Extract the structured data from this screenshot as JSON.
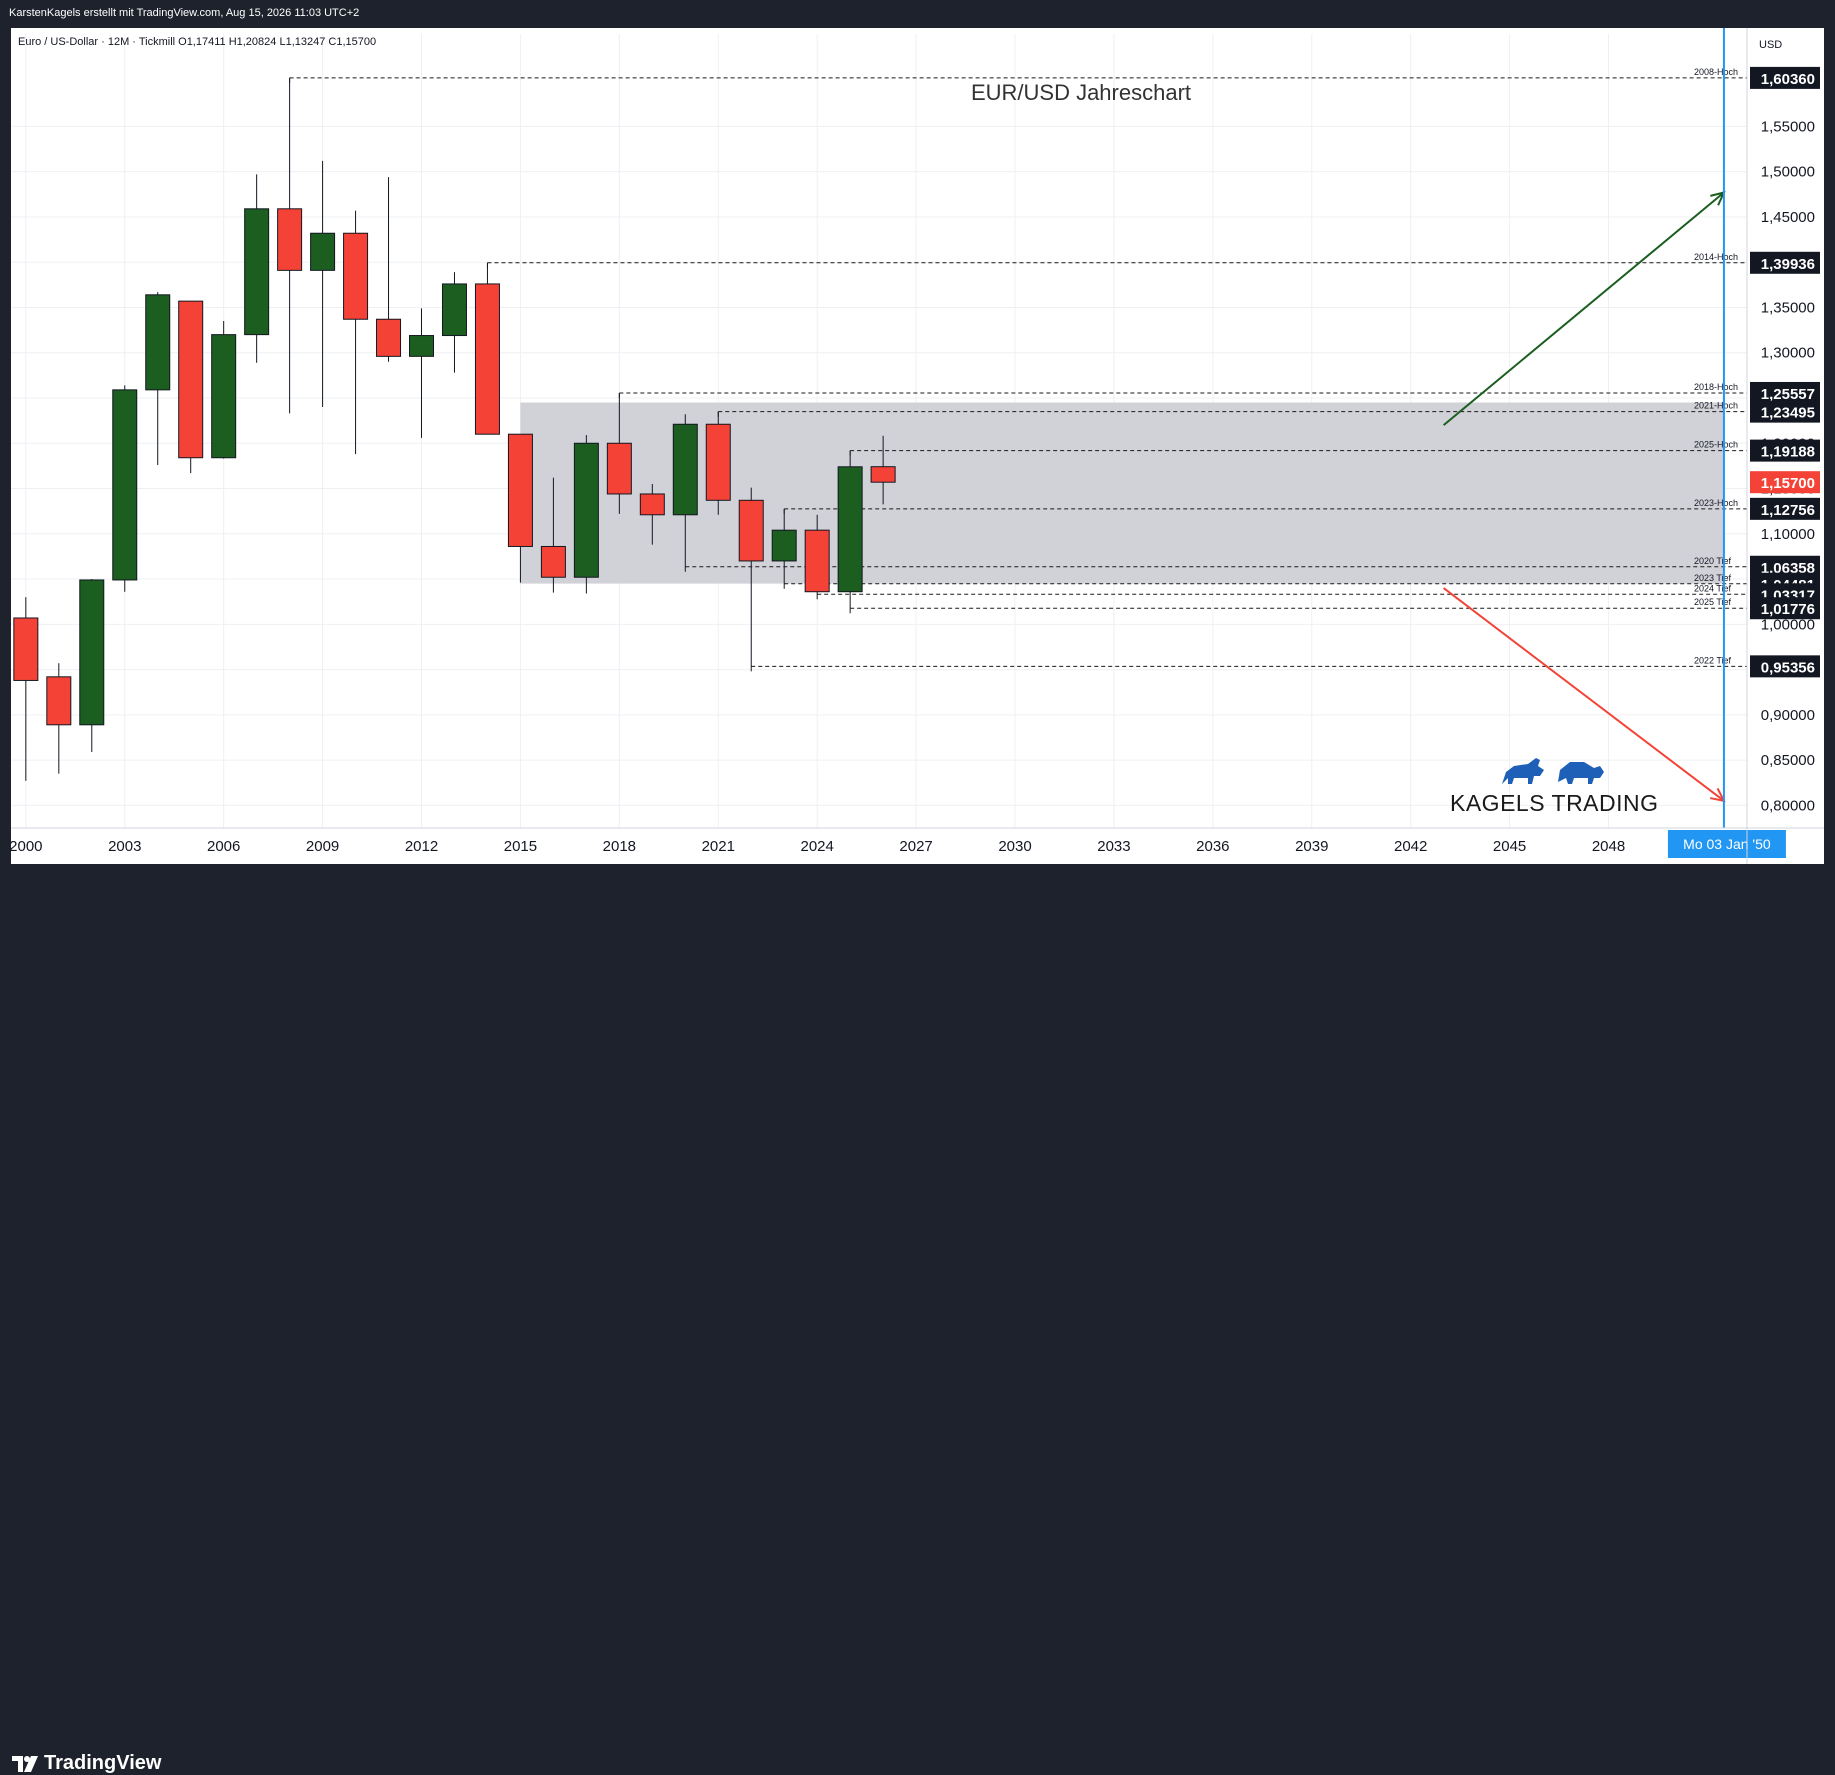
{
  "header": {
    "publisher": "KarstenKagels erstellt mit TradingView.com, Aug 15, 2026 11:03 UTC+2"
  },
  "symbol_line": "Euro / US-Dollar · 12M · Tickmill  O1,17411  H1,20824  L1,13247  C1,15700",
  "currency": "USD",
  "footer": {
    "brand": "TradingView"
  },
  "watermark": {
    "brand": "KAGELS TRADING"
  },
  "crosshair_label": "Mo 03 Jan '50",
  "colors": {
    "bull": "#1b5e20",
    "bear": "#f44336",
    "zone": "#cfcfd6",
    "crosshair": "#2196f3",
    "up_arrow": "#1b5e20",
    "down_arrow": "#f44336"
  },
  "chart_data": {
    "type": "candlestick",
    "title": "EUR/USD Jahreschart",
    "ylim": [
      0.775,
      1.63
    ],
    "xlim": [
      1999.55,
      2052.2
    ],
    "x_ticks": [
      "2000",
      "2003",
      "2006",
      "2009",
      "2012",
      "2015",
      "2018",
      "2021",
      "2024",
      "2027",
      "2030",
      "2033",
      "2036",
      "2039",
      "2042",
      "2045",
      "2048"
    ],
    "y_ticks": [
      "0,80000",
      "0,85000",
      "0,90000",
      "0,95000",
      "1,00000",
      "1,05000",
      "1,10000",
      "1,15000",
      "1,20000",
      "1,25000",
      "1,30000",
      "1,35000",
      "1,40000",
      "1,45000",
      "1,50000",
      "1,55000"
    ],
    "candles": [
      {
        "x": 2000,
        "o": 1.007,
        "h": 1.03,
        "l": 0.827,
        "c": 0.938
      },
      {
        "x": 2001,
        "o": 0.942,
        "h": 0.957,
        "l": 0.835,
        "c": 0.889
      },
      {
        "x": 2002,
        "o": 0.889,
        "h": 1.05,
        "l": 0.859,
        "c": 1.049
      },
      {
        "x": 2003,
        "o": 1.049,
        "h": 1.264,
        "l": 1.036,
        "c": 1.259
      },
      {
        "x": 2004,
        "o": 1.259,
        "h": 1.367,
        "l": 1.176,
        "c": 1.364
      },
      {
        "x": 2005,
        "o": 1.357,
        "h": 1.357,
        "l": 1.167,
        "c": 1.184
      },
      {
        "x": 2006,
        "o": 1.184,
        "h": 1.335,
        "l": 1.183,
        "c": 1.32
      },
      {
        "x": 2007,
        "o": 1.32,
        "h": 1.497,
        "l": 1.289,
        "c": 1.459
      },
      {
        "x": 2008,
        "o": 1.459,
        "h": 1.6036,
        "l": 1.233,
        "c": 1.391
      },
      {
        "x": 2009,
        "o": 1.391,
        "h": 1.512,
        "l": 1.24,
        "c": 1.432
      },
      {
        "x": 2010,
        "o": 1.432,
        "h": 1.457,
        "l": 1.188,
        "c": 1.337
      },
      {
        "x": 2011,
        "o": 1.337,
        "h": 1.494,
        "l": 1.29,
        "c": 1.296
      },
      {
        "x": 2012,
        "o": 1.296,
        "h": 1.349,
        "l": 1.206,
        "c": 1.319
      },
      {
        "x": 2013,
        "o": 1.319,
        "h": 1.389,
        "l": 1.278,
        "c": 1.376
      },
      {
        "x": 2014,
        "o": 1.376,
        "h": 1.39936,
        "l": 1.21,
        "c": 1.21
      },
      {
        "x": 2015,
        "o": 1.21,
        "h": 1.21,
        "l": 1.046,
        "c": 1.086
      },
      {
        "x": 2016,
        "o": 1.086,
        "h": 1.162,
        "l": 1.035,
        "c": 1.052
      },
      {
        "x": 2017,
        "o": 1.052,
        "h": 1.209,
        "l": 1.034,
        "c": 1.2
      },
      {
        "x": 2018,
        "o": 1.2,
        "h": 1.25557,
        "l": 1.122,
        "c": 1.144
      },
      {
        "x": 2019,
        "o": 1.144,
        "h": 1.155,
        "l": 1.088,
        "c": 1.121
      },
      {
        "x": 2020,
        "o": 1.121,
        "h": 1.232,
        "l": 1.06358,
        "c": 1.221
      },
      {
        "x": 2021,
        "o": 1.221,
        "h": 1.23495,
        "l": 1.121,
        "c": 1.137
      },
      {
        "x": 2022,
        "o": 1.137,
        "h": 1.151,
        "l": 0.95356,
        "c": 1.07
      },
      {
        "x": 2023,
        "o": 1.07,
        "h": 1.12756,
        "l": 1.04481,
        "c": 1.104
      },
      {
        "x": 2024,
        "o": 1.104,
        "h": 1.121,
        "l": 1.03317,
        "c": 1.036
      },
      {
        "x": 2025,
        "o": 1.036,
        "h": 1.19188,
        "l": 1.01776,
        "c": 1.174
      },
      {
        "x": 2026,
        "o": 1.17411,
        "h": 1.20824,
        "l": 1.13247,
        "c": 1.157
      }
    ],
    "zone": {
      "x1": 2015,
      "x2": 2051.5,
      "y1": 1.045,
      "y2": 1.245
    },
    "levels": [
      {
        "name": "2008-Hoch",
        "value": "1,60360",
        "y": 1.6036,
        "x0": 2008
      },
      {
        "name": "2014-Hoch",
        "value": "1,39936",
        "y": 1.39936,
        "x0": 2014
      },
      {
        "name": "2018-Hoch",
        "value": "1,25557",
        "y": 1.25557,
        "x0": 2018
      },
      {
        "name": "2021-Hoch",
        "value": "1,23495",
        "y": 1.23495,
        "x0": 2021
      },
      {
        "name": "2025-Hoch",
        "value": "1,19188",
        "y": 1.19188,
        "x0": 2025
      },
      {
        "name": "2023-Hoch",
        "value": "1,12756",
        "y": 1.12756,
        "x0": 2023
      },
      {
        "name": "2020 Tief",
        "value": "1,06358",
        "y": 1.06358,
        "x0": 2020
      },
      {
        "name": "2023 Tief",
        "value": "1,04481",
        "y": 1.04481,
        "x0": 2023
      },
      {
        "name": "2024 Tief",
        "value": "1,03317",
        "y": 1.03317,
        "x0": 2024
      },
      {
        "name": "2025 Tief",
        "value": "1,01776",
        "y": 1.01776,
        "x0": 2025
      },
      {
        "name": "2022 Tief",
        "value": "0,95356",
        "y": 0.95356,
        "x0": 2022
      }
    ],
    "current_price": {
      "value": "1,15700",
      "y": 1.157
    },
    "arrows": [
      {
        "name": "bull-scenario",
        "x1": 2043,
        "y1": 1.22,
        "x2": 2051.5,
        "y2": 1.477
      },
      {
        "name": "bear-scenario",
        "x1": 2043,
        "y1": 1.04,
        "x2": 2051.5,
        "y2": 0.805
      }
    ],
    "crosshair_x": 2051.5
  }
}
